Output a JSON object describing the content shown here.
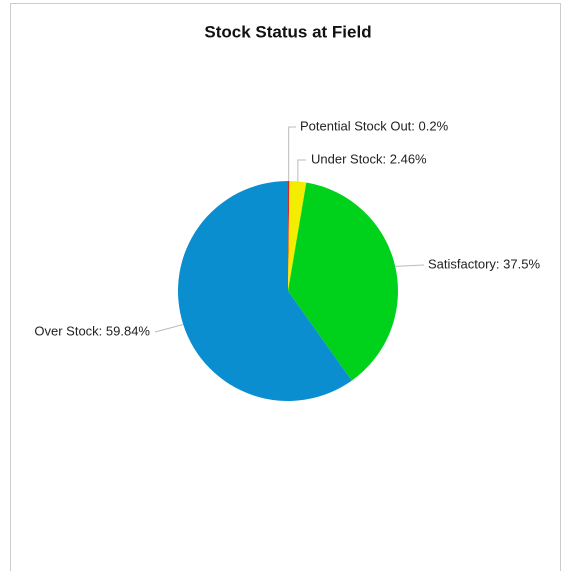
{
  "chart_data": {
    "type": "pie",
    "title": "Stock Status at Field",
    "labels": [
      "Potential Stock Out: 0.2%",
      "Under Stock: 2.46%",
      "Satisfactory: 37.5%",
      "Over Stock: 59.84%"
    ],
    "values": [
      0.2,
      2.46,
      37.5,
      59.84
    ],
    "colors": [
      "#d62728",
      "#f3ee00",
      "#00d21c",
      "#0b8ed0"
    ]
  }
}
